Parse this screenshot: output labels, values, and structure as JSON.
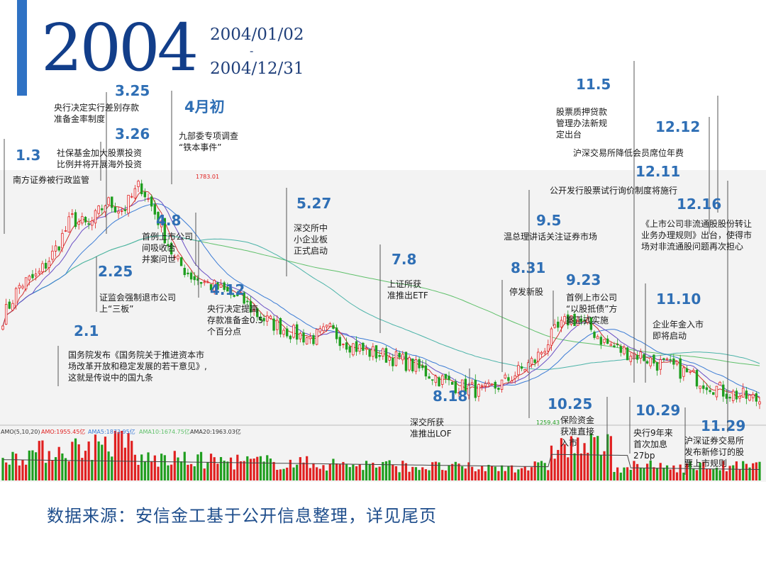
{
  "header": {
    "year": "2004",
    "date_start": "2004/01/02",
    "date_sep": "-",
    "date_end": "2004/12/31"
  },
  "footer": {
    "source": "数据来源：安信金工基于公开信息整理，详见尾页"
  },
  "colors": {
    "up": "#e02020",
    "down": "#1f9e1f",
    "date": "#2f6fb5",
    "text": "#1a1a1a",
    "ma5": "#d03030",
    "ma10": "#6a4fc4",
    "ma20": "#3a7bd5",
    "ma60": "#4bb3a8",
    "ma120": "#5fc06a"
  },
  "chart_data": {
    "type": "candlestick",
    "title": "",
    "x_range": [
      "2004/01/02",
      "2004/12/31"
    ],
    "price_high": {
      "label": "1783.01",
      "value": 1783.01
    },
    "price_low": {
      "label": "1259.43",
      "value": 1259.43
    },
    "ylim": [
      1200,
      1800
    ],
    "price_path": [
      1460,
      1540,
      1560,
      1620,
      1700,
      1680,
      1740,
      1720,
      1783,
      1700,
      1600,
      1560,
      1540,
      1520,
      1500,
      1460,
      1440,
      1420,
      1410,
      1430,
      1400,
      1380,
      1370,
      1360,
      1340,
      1320,
      1300,
      1290,
      1280,
      1300,
      1330,
      1360,
      1420,
      1460,
      1440,
      1400,
      1380,
      1370,
      1350,
      1340,
      1320,
      1300,
      1280,
      1270,
      1260
    ],
    "volume_legend": {
      "title": "AMO(5,10,20)",
      "amo": "AMO:1955.45亿",
      "amo5": "AMA5:1873.95亿",
      "amo10": "AMA10:1674.75亿",
      "amo20": "AMA20:1963.03亿"
    },
    "events": [
      {
        "date": "1.3",
        "text": [
          "南方证券被行政监管"
        ]
      },
      {
        "date": "2.1",
        "text": [
          "国务院发布《国务院关于推进资本市",
          "场改革开放和稳定发展的若干意见》,",
          "这就是传说中的国九条"
        ]
      },
      {
        "date": "2.25",
        "text": [
          "证监会强制退市公司",
          "上“三板”"
        ]
      },
      {
        "date": "3.25",
        "text": [
          "央行决定实行差别存款",
          "准备金率制度"
        ]
      },
      {
        "date": "3.26",
        "text": [
          "社保基金加大股票投资",
          "比例并将开展海外投资"
        ]
      },
      {
        "date": "4月初",
        "text": [
          "九部委专项调查",
          "“铁本事件”"
        ]
      },
      {
        "date": "4.8",
        "text": [
          "首例上市公司",
          "间吸收合",
          "并案问世"
        ]
      },
      {
        "date": "4.12",
        "text": [
          "央行决定提高",
          "存款准备金0.5",
          "个百分点"
        ]
      },
      {
        "date": "5.27",
        "text": [
          "深交所中",
          "小企业板",
          "正式启动"
        ]
      },
      {
        "date": "7.8",
        "text": [
          "上证所获",
          "准推出ETF"
        ]
      },
      {
        "date": "8.18",
        "text": [
          "深交所获",
          "准推出LOF"
        ]
      },
      {
        "date": "8.31",
        "text": [
          "停发新股"
        ]
      },
      {
        "date": "9.5",
        "text": [
          "温总理讲话关注证券市场"
        ]
      },
      {
        "date": "9.23",
        "text": [
          "首例上市公司",
          "“以股抵债”方",
          "案正式实施"
        ]
      },
      {
        "date": "10.25",
        "text": [
          "保险资金",
          "获准直接",
          "入市"
        ]
      },
      {
        "date": "10.29",
        "text": [
          "央行9年来",
          "首次加息",
          "27bp"
        ]
      },
      {
        "date": "11.5",
        "text": [
          "股票质押贷款",
          "管理办法新规",
          "定出台"
        ]
      },
      {
        "date": "11.10",
        "text": [
          "企业年金入市",
          "即将启动"
        ]
      },
      {
        "date": "11.29",
        "text": [
          "沪深证券交易所",
          "发布新修订的股",
          "票上市规则"
        ]
      },
      {
        "date": "12.11",
        "text": [
          "公开发行股票试行询价制度将施行"
        ]
      },
      {
        "date": "12.12",
        "text": [
          "沪深交易所降低会员席位年费"
        ]
      },
      {
        "date": "12.16",
        "text": [
          "《上市公司非流通股股份转让",
          "业务办理规则》出台，使得市",
          "场对非流通股问题再次担心"
        ]
      }
    ]
  }
}
